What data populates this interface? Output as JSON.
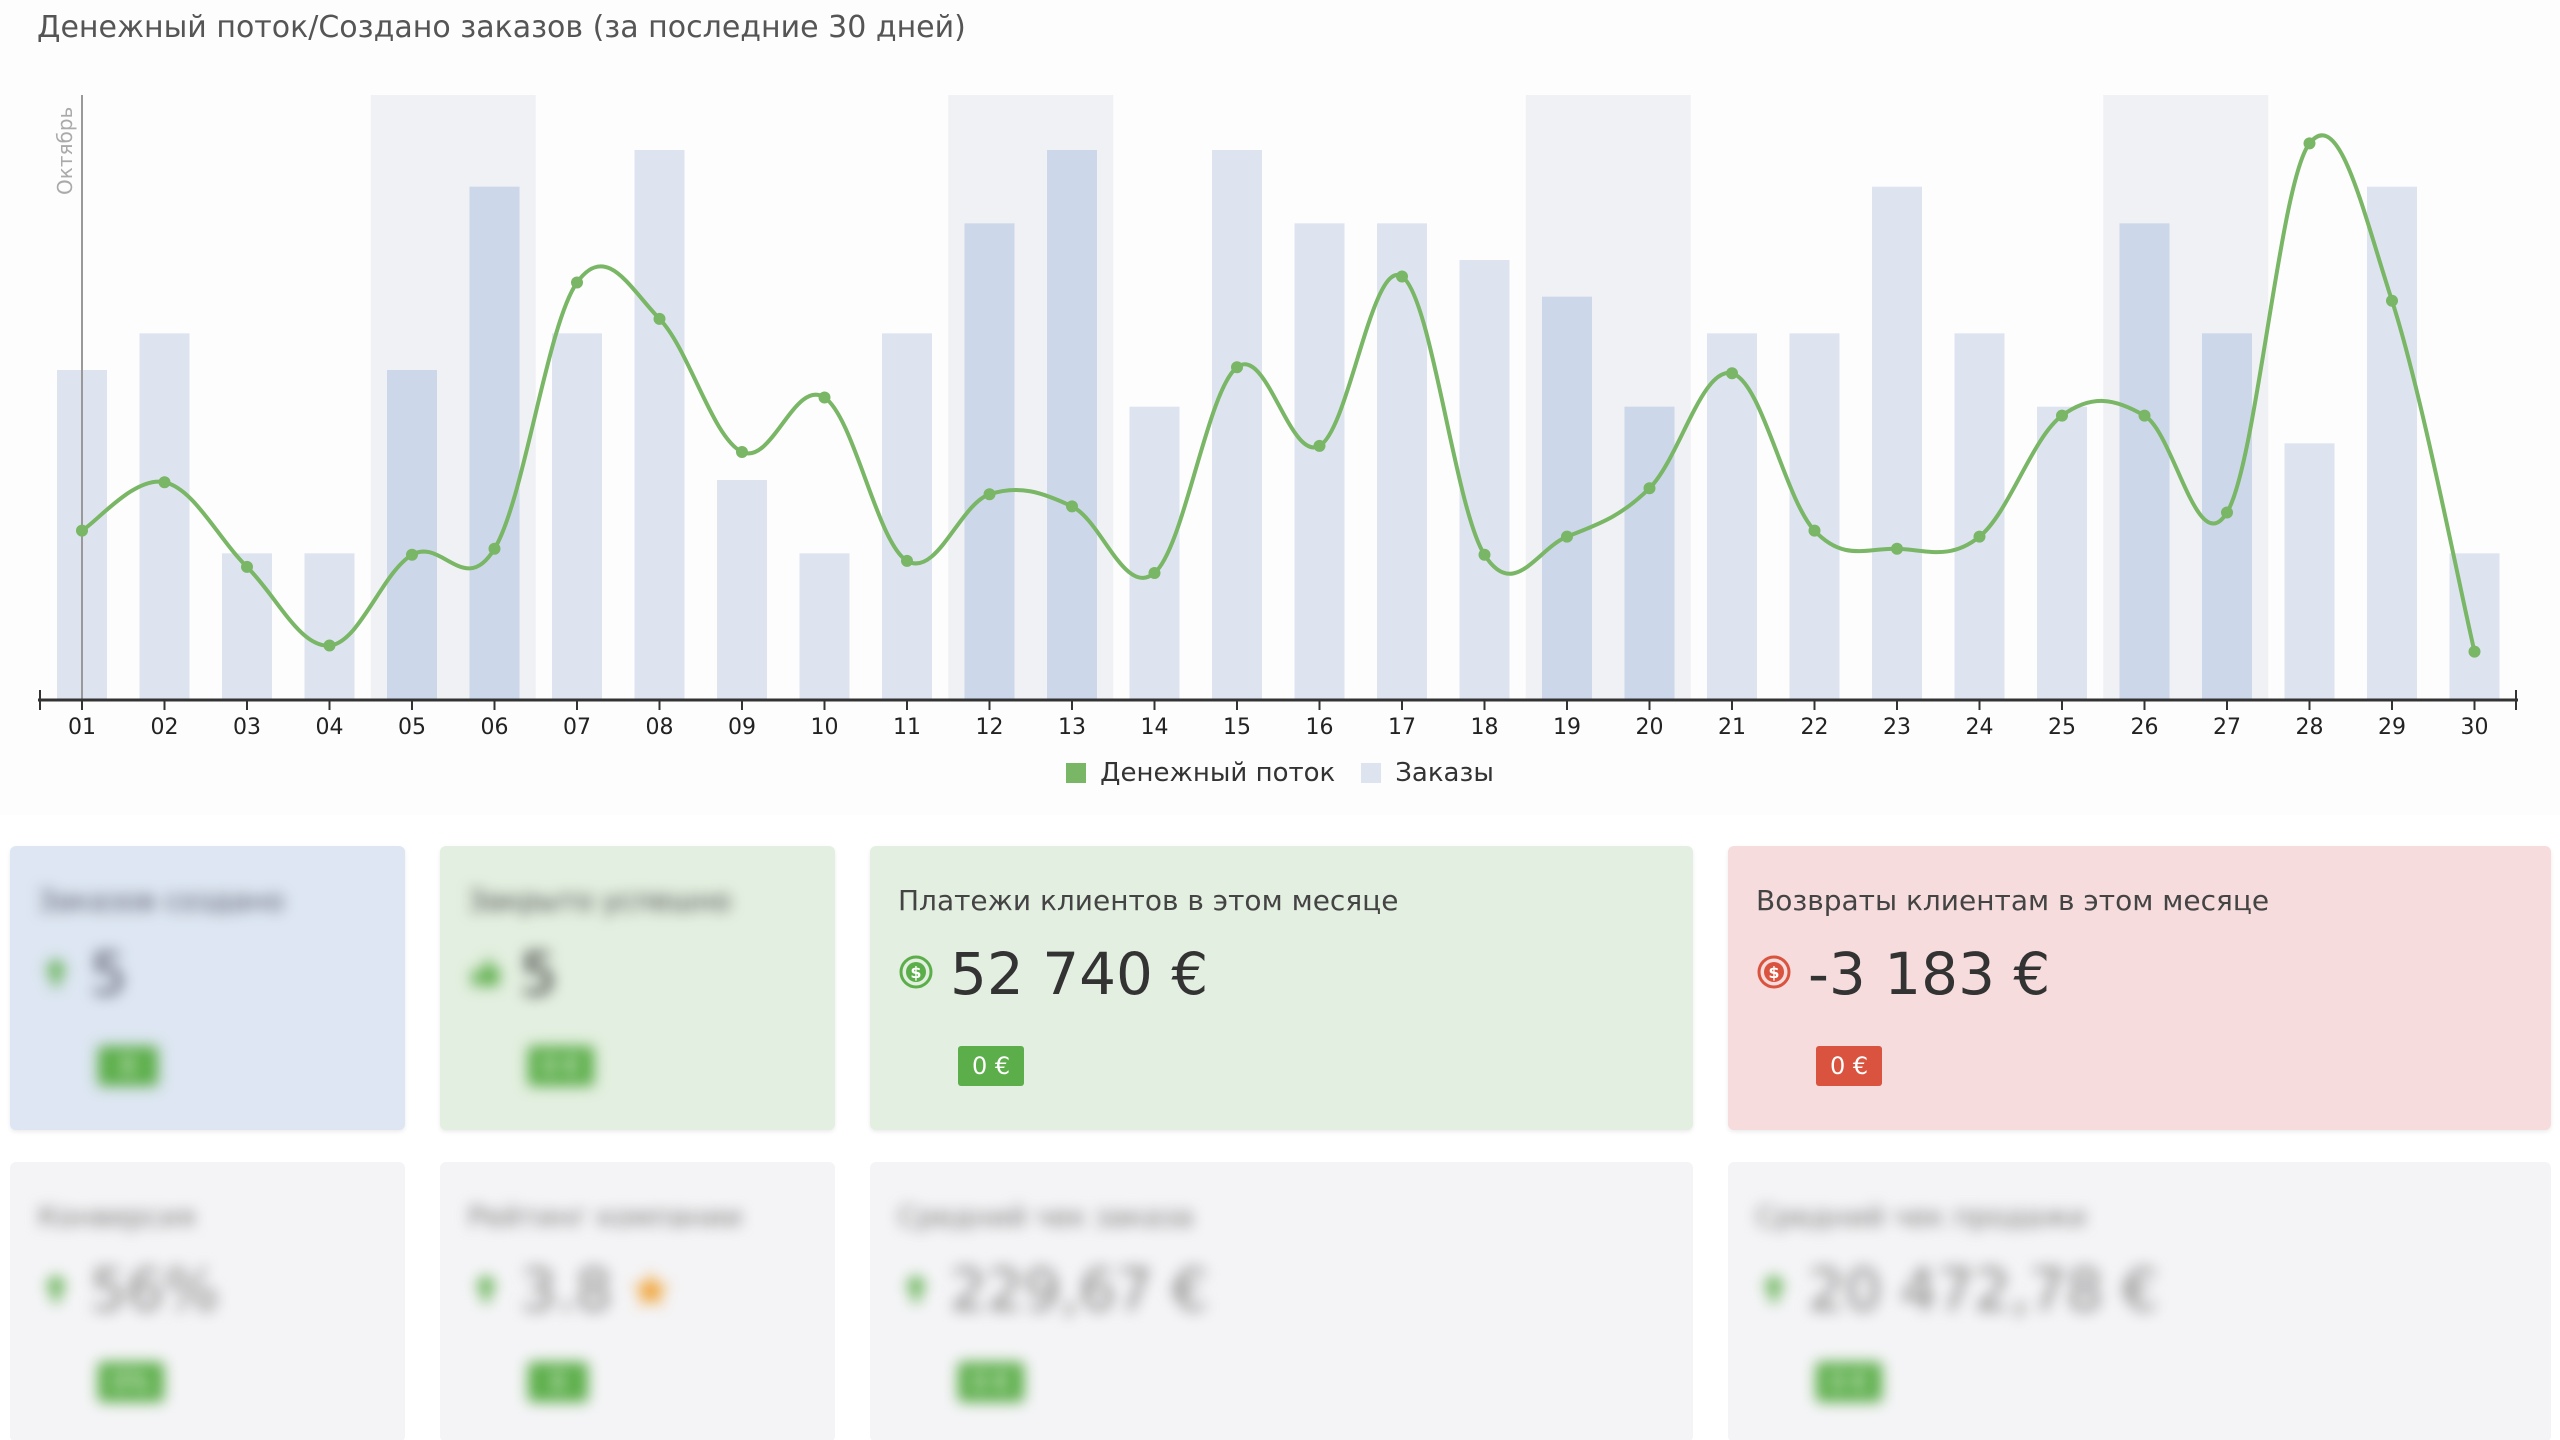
{
  "chart": {
    "title": "Денежный поток/Создано заказов (за последние 30 дней)",
    "month_label": "Октябрь",
    "legend": {
      "cashflow": "Денежный поток",
      "orders": "Заказы"
    },
    "colors": {
      "cashflow": "#79b665",
      "orders": "#dde4f0",
      "orders_dark": "#cdd7ea",
      "weekend_band": "#f0f1f4",
      "axis": "#333333"
    }
  },
  "chart_data": {
    "type": "bar+line",
    "categories": [
      "01",
      "02",
      "03",
      "04",
      "05",
      "06",
      "07",
      "08",
      "09",
      "10",
      "11",
      "12",
      "13",
      "14",
      "15",
      "16",
      "17",
      "18",
      "19",
      "20",
      "21",
      "22",
      "23",
      "24",
      "25",
      "26",
      "27",
      "28",
      "29",
      "30"
    ],
    "weekend_days": [
      "05",
      "06",
      "12",
      "13",
      "19",
      "20",
      "26",
      "27"
    ],
    "series": [
      {
        "name": "Заказы",
        "kind": "bar",
        "values": [
          9,
          10,
          4,
          4,
          9,
          14,
          10,
          15,
          6,
          4,
          10,
          13,
          15,
          8,
          15,
          13,
          13,
          12,
          11,
          8,
          10,
          10,
          14,
          10,
          8,
          13,
          10,
          7,
          14,
          4
        ]
      },
      {
        "name": "Денежный поток",
        "kind": "line",
        "values": [
          28,
          36,
          22,
          9,
          24,
          25,
          69,
          63,
          41,
          50,
          23,
          34,
          32,
          21,
          55,
          42,
          70,
          24,
          27,
          35,
          54,
          28,
          25,
          27,
          47,
          47,
          31,
          92,
          66,
          8
        ]
      }
    ],
    "xlabel": "",
    "ylabel": ""
  },
  "cards_top": [
    {
      "title": "Заказов создано",
      "value": "5",
      "badge": "0",
      "theme": "blue",
      "blurred": true,
      "icon": "arrow-up-icon"
    },
    {
      "title": "Закрыто успешно",
      "value": "5",
      "badge": "0 €",
      "theme": "green",
      "blurred": true,
      "icon": "thumbs-up-icon"
    },
    {
      "title": "Платежи клиентов в этом месяце",
      "value": "52 740 €",
      "badge": "0 €",
      "theme": "green",
      "blurred": false,
      "icon": "dollar-circle-icon"
    },
    {
      "title": "Возвраты клиентам в этом месяце",
      "value": "-3 183 €",
      "badge": "0 €",
      "theme": "red",
      "blurred": false,
      "icon": "dollar-circle-icon"
    }
  ],
  "cards_bottom": [
    {
      "title": "Конверсия",
      "value": "56%",
      "badge": "0%",
      "theme": "gray",
      "blurred": true,
      "icon": "arrow-up-icon"
    },
    {
      "title": "Рейтинг компании",
      "value": "3.8",
      "badge": "0",
      "theme": "gray",
      "blurred": true,
      "icon": "arrow-up-icon",
      "star": true
    },
    {
      "title": "Средний чек заказа",
      "value": "229,67 €",
      "badge": "0 €",
      "theme": "gray",
      "blurred": true,
      "icon": "arrow-up-icon"
    },
    {
      "title": "Средний чек продажи",
      "value": "20 472,78 €",
      "badge": "0 €",
      "theme": "gray",
      "blurred": true,
      "icon": "arrow-up-icon"
    }
  ],
  "themes": {
    "blue": {
      "bg": "#dde6f2",
      "title": "#556",
      "value": "#556",
      "badge": "#5cae4a",
      "icon": "#5cae4a"
    },
    "green": {
      "bg": "#e3efe0",
      "title": "#444",
      "value": "#333",
      "badge": "#5cae4a",
      "icon": "#5cae4a"
    },
    "red": {
      "bg": "#f6dcdc",
      "title": "#444",
      "value": "#333",
      "badge": "#d9533f",
      "icon": "#d9533f"
    },
    "gray": {
      "bg": "#f4f4f6",
      "title": "#777",
      "value": "#888",
      "badge": "#5cae4a",
      "icon": "#5cae4a"
    }
  }
}
